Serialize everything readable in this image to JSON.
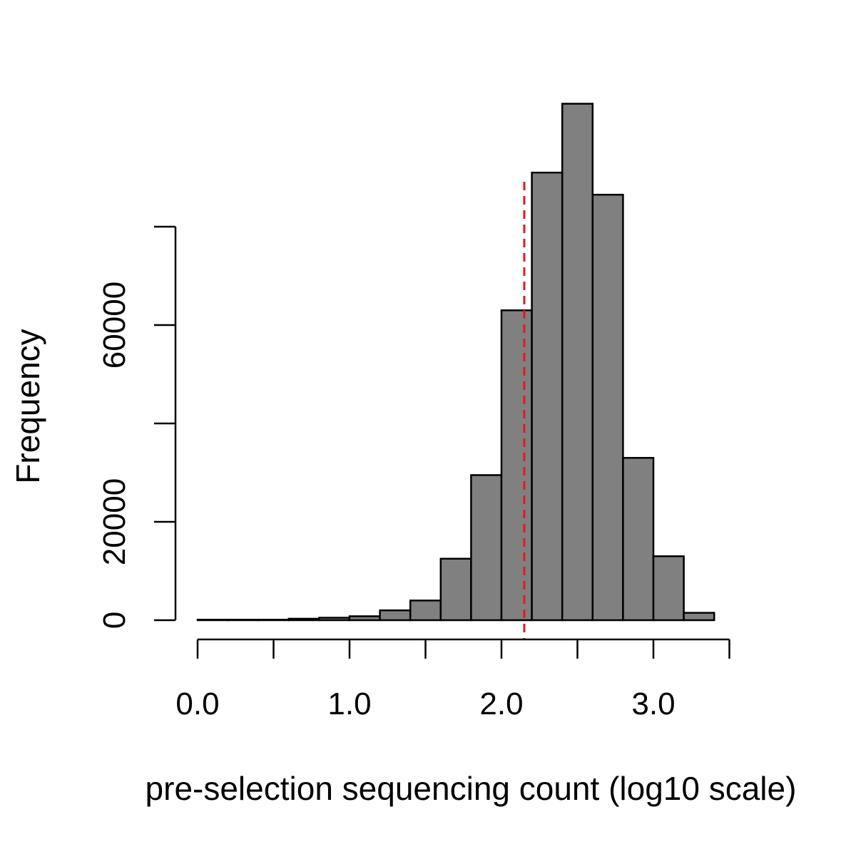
{
  "chart_data": {
    "type": "bar",
    "title": "",
    "xlabel": "pre-selection sequencing count (log10 scale)",
    "ylabel": "Frequency",
    "bin_edges": [
      0.0,
      0.2,
      0.4,
      0.6,
      0.8,
      1.0,
      1.2,
      1.4,
      1.6,
      1.8,
      2.0,
      2.2,
      2.4,
      2.6,
      2.8,
      3.0,
      3.2,
      3.4
    ],
    "values": [
      100,
      100,
      100,
      300,
      500,
      800,
      2000,
      4000,
      12500,
      29500,
      63000,
      91000,
      105000,
      86500,
      33000,
      13000,
      1500
    ],
    "xlim": [
      0.0,
      3.5
    ],
    "ylim": [
      0,
      105000
    ],
    "x_ticks": [
      0.0,
      0.5,
      1.0,
      1.5,
      2.0,
      2.5,
      3.0,
      3.5
    ],
    "x_tick_labels": [
      "0.0",
      "1.0",
      "2.0",
      "3.0"
    ],
    "x_tick_label_values": [
      0.0,
      1.0,
      2.0,
      3.0
    ],
    "y_ticks": [
      0,
      20000,
      40000,
      60000,
      80000
    ],
    "y_tick_labels": [
      "0",
      "20000",
      "60000"
    ],
    "y_tick_label_values": [
      0,
      20000,
      60000
    ],
    "reference_line": {
      "x": 2.15,
      "color": "#e41a1c",
      "style": "dashed"
    },
    "bar_fill": "#808080",
    "bar_stroke": "#000000",
    "grid": false,
    "legend": "none"
  }
}
